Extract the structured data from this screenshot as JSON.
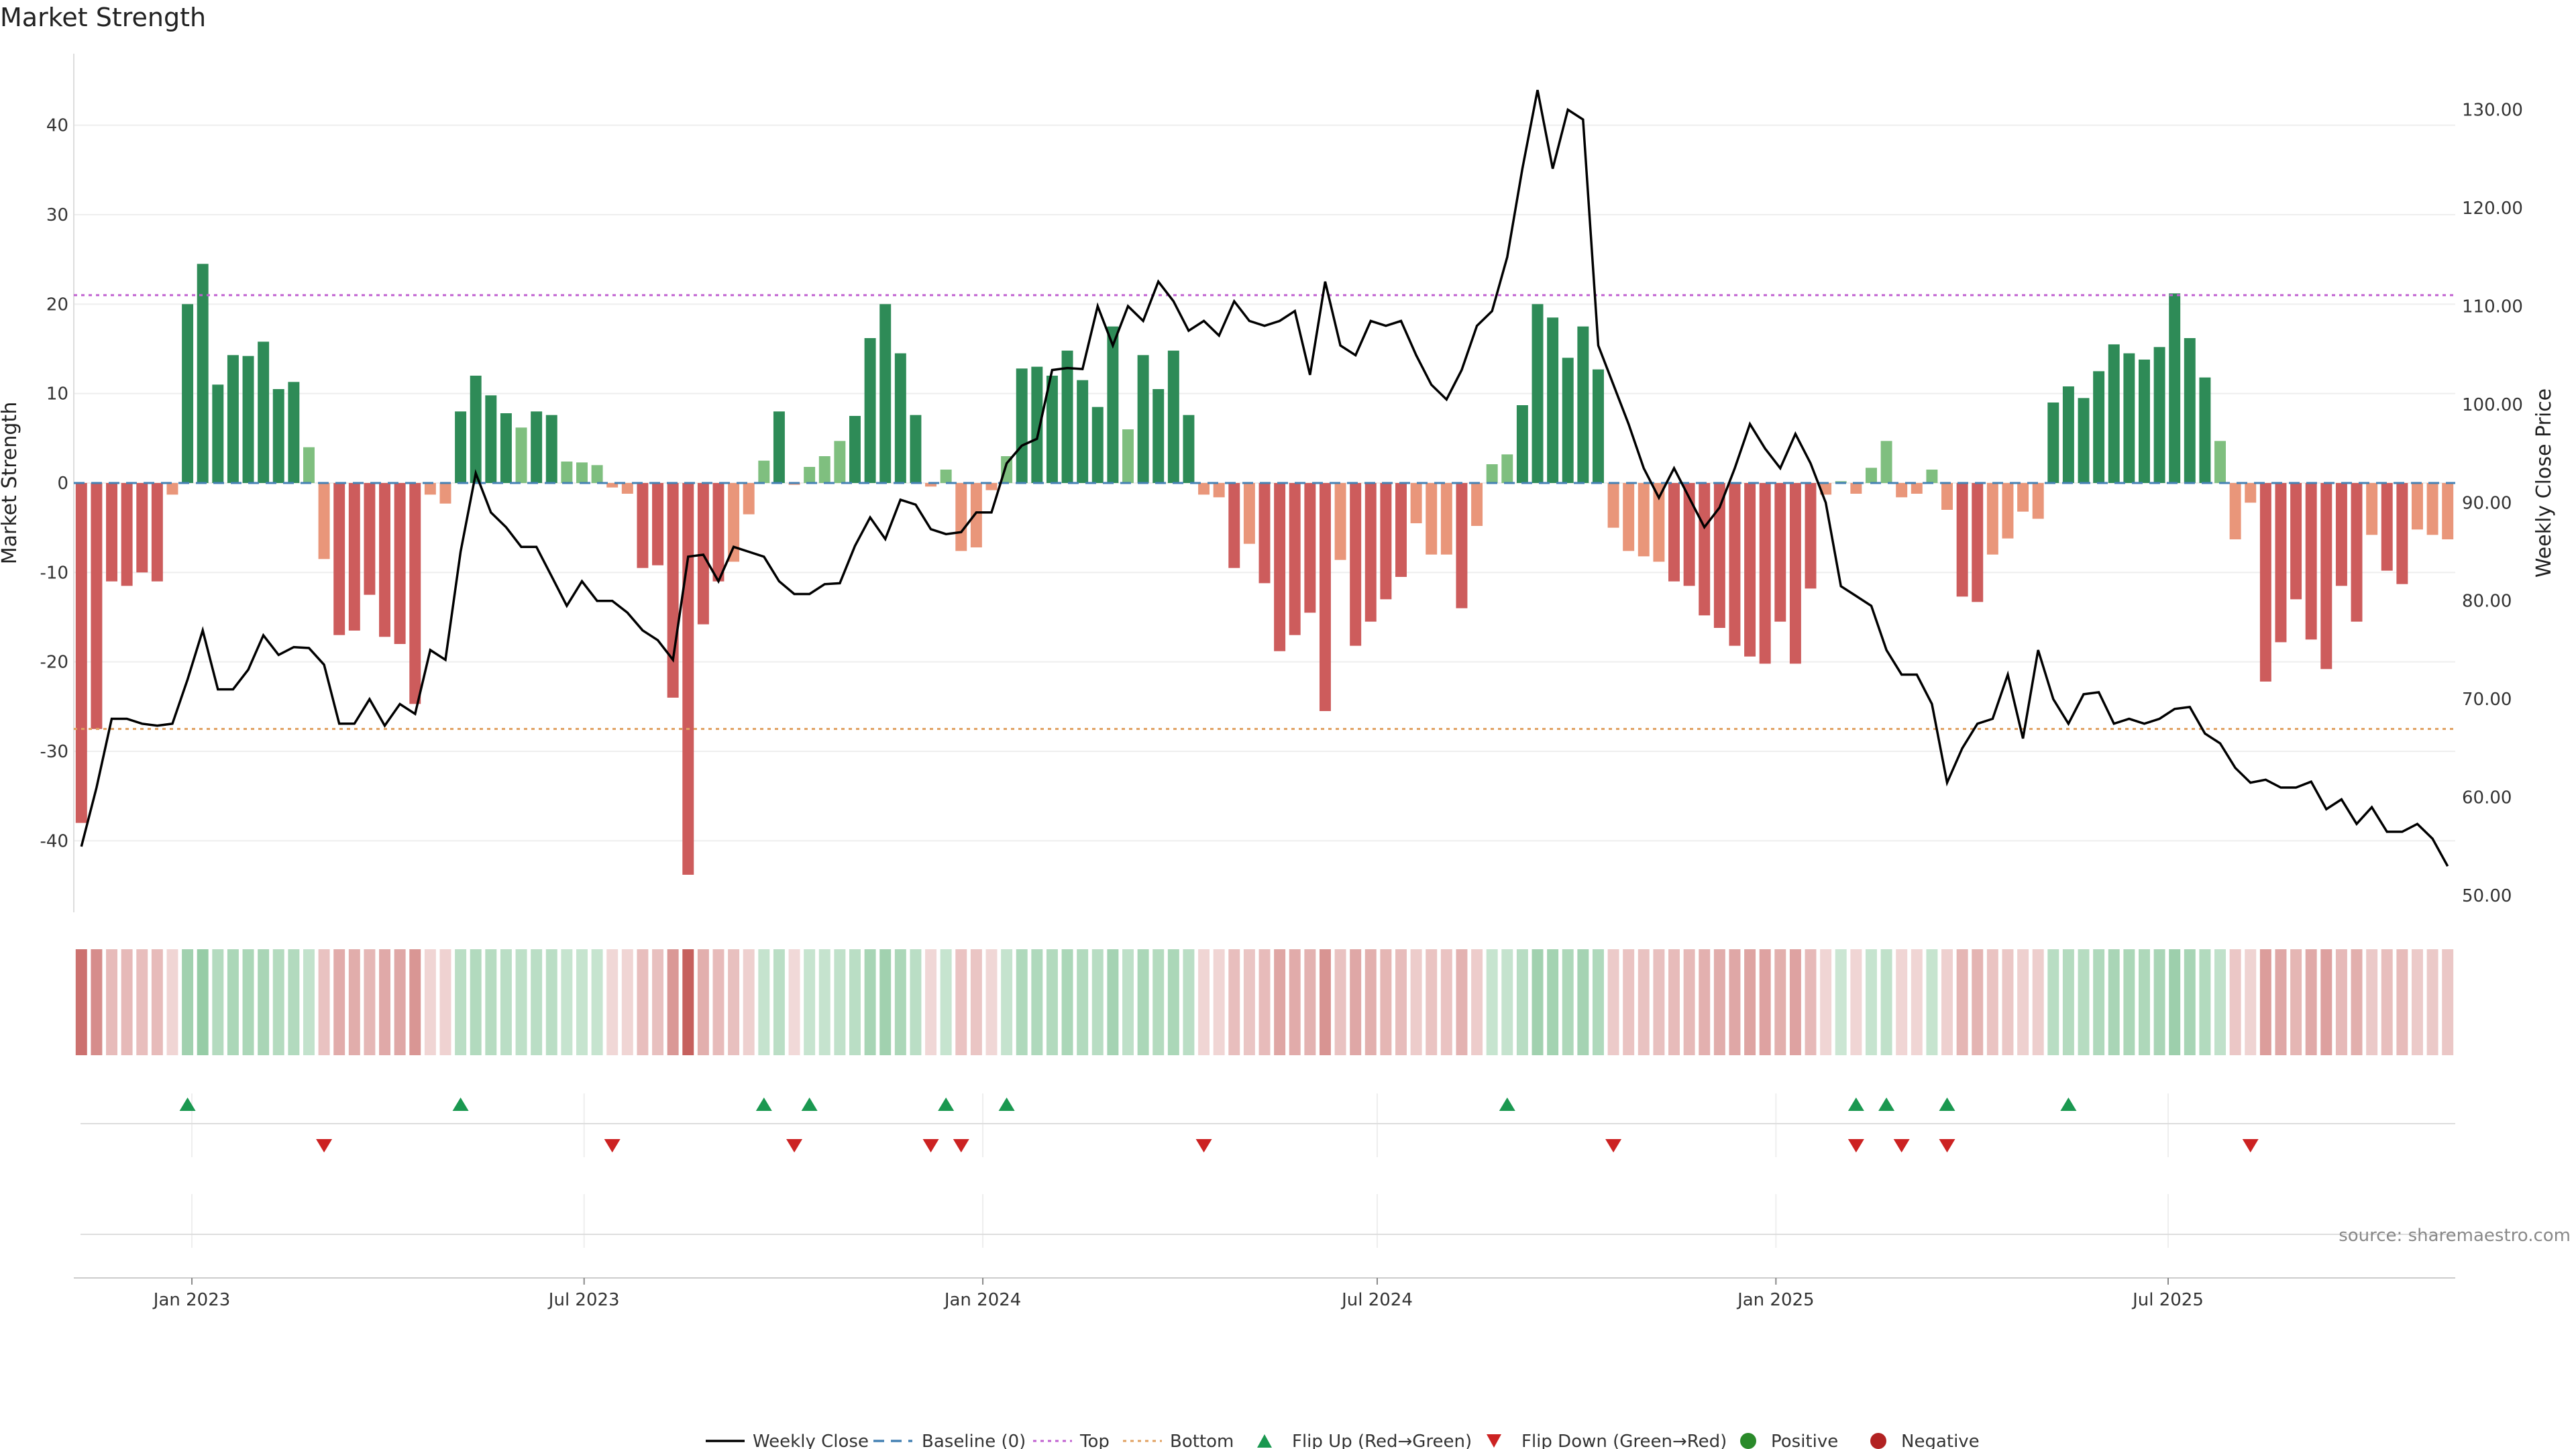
{
  "title": "Market Strength",
  "source": "source: sharemaestro.com",
  "legend": {
    "weekly_close": "Weekly Close",
    "baseline": "Baseline (0)",
    "top": "Top",
    "bottom": "Bottom",
    "flip_up": "Flip Up (Red→Green)",
    "flip_down": "Flip Down (Green→Red)",
    "positive": "Positive",
    "negative": "Negative"
  },
  "colors": {
    "strong_green": "#2e8b57",
    "light_green": "#7fbf7f",
    "strong_red": "#cd5c5c",
    "light_red": "#e9967a",
    "top_line": "#c060d0",
    "bottom_line": "#e0a060",
    "baseline": "#4682b4",
    "flip_up": "#1a9850",
    "flip_down": "#cc2222"
  },
  "chart_data": {
    "type": "bar",
    "x_start": "2022-11-11",
    "x_step_days": 7,
    "x_tick_labels": [
      "Jan 2023",
      "Jul 2023",
      "Jan 2024",
      "Jul 2024",
      "Jan 2025",
      "Jul 2025"
    ],
    "x_tick_dates": [
      "2023-01-01",
      "2023-07-01",
      "2024-01-01",
      "2024-07-01",
      "2025-01-01",
      "2025-07-01"
    ],
    "left_axis": {
      "label": "Market Strength",
      "ylim": [
        -48,
        48
      ],
      "ticks": [
        -40,
        -30,
        -20,
        -10,
        0,
        10,
        20,
        30,
        40
      ]
    },
    "right_axis": {
      "label": "Weekly Close Price",
      "ylim": [
        48.3,
        135.7
      ],
      "ticks": [
        "50.00",
        "60.00",
        "70.00",
        "80.00",
        "90.00",
        "100.00",
        "110.00",
        "120.00",
        "130.00"
      ]
    },
    "top_level": 21,
    "bottom_level": -27.5,
    "baseline": 0,
    "strength": [
      -38,
      -27.5,
      -11,
      -11.5,
      -10,
      -11,
      -1.3,
      20,
      24.5,
      11,
      14.3,
      14.2,
      15.8,
      10.5,
      11.3,
      4,
      -8.5,
      -17,
      -16.5,
      -12.5,
      -17.2,
      -18,
      -24.7,
      -1.3,
      -2.3,
      8,
      12,
      9.8,
      7.8,
      6.2,
      8,
      7.6,
      2.4,
      2.3,
      2,
      -0.5,
      -1.2,
      -9.5,
      -9.2,
      -24,
      -43.8,
      -15.8,
      -11,
      -8.8,
      -3.5,
      2.5,
      8,
      -0.2,
      1.8,
      3,
      4.7,
      7.5,
      16.2,
      20,
      14.5,
      7.6,
      -0.4,
      1.5,
      -7.6,
      -7.2,
      -0.8,
      3,
      12.8,
      13,
      12,
      14.8,
      11.5,
      8.5,
      17.5,
      6,
      14.3,
      10.5,
      14.8,
      7.6,
      -1.3,
      -1.6,
      -9.5,
      -6.8,
      -11.2,
      -18.8,
      -17,
      -14.5,
      -25.5,
      -8.6,
      -18.2,
      -15.5,
      -13,
      -10.5,
      -4.5,
      -8,
      -8,
      -14,
      -4.8,
      2.1,
      3.2,
      8.7,
      20,
      18.5,
      14,
      17.5,
      12.7,
      -5,
      -7.6,
      -8.2,
      -8.8,
      -11,
      -11.5,
      -14.8,
      -16.2,
      -18.2,
      -19.4,
      -20.2,
      -15.5,
      -20.2,
      -11.8,
      -1.3,
      0.2,
      -1.2,
      1.7,
      4.7,
      -1.6,
      -1.2,
      1.5,
      -3,
      -12.7,
      -13.3,
      -8,
      -6.2,
      -3.2,
      -4,
      9,
      10.8,
      9.5,
      12.5,
      15.5,
      14.5,
      13.8,
      15.2,
      21.2,
      16.2,
      11.8,
      4.7,
      -6.3,
      -2.2,
      -22.2,
      -17.8,
      -13,
      -17.5,
      -20.8,
      -11.5,
      -15.5,
      -5.8,
      -9.8,
      -11.3,
      -5.2,
      -5.8,
      -6.3
    ],
    "weekly_close": [
      55,
      61,
      68,
      68,
      67.5,
      67.3,
      67.5,
      72,
      77,
      71,
      71,
      73,
      76.5,
      74.5,
      75.3,
      75.2,
      73.5,
      67.5,
      67.5,
      70,
      67.3,
      69.5,
      68.5,
      75,
      74,
      85,
      93,
      89,
      87.5,
      85.5,
      85.5,
      82.5,
      79.5,
      82,
      80,
      80,
      78.8,
      77,
      76,
      74,
      84.5,
      84.7,
      82,
      85.5,
      85,
      84.5,
      82,
      80.7,
      80.7,
      81.7,
      81.8,
      85.6,
      88.5,
      86.3,
      90.3,
      89.8,
      87.3,
      86.8,
      87,
      89,
      89,
      94,
      95.8,
      96.5,
      103.5,
      103.7,
      103.6,
      110,
      106,
      110,
      108.5,
      112.5,
      110.5,
      107.5,
      108.5,
      107,
      110.5,
      108.5,
      108,
      108.5,
      109.5,
      103,
      112.5,
      106,
      105,
      108.5,
      108,
      108.5,
      105,
      102,
      100.5,
      103.5,
      108,
      109.5,
      115,
      124,
      132,
      124,
      130,
      129,
      106,
      102,
      98,
      93.5,
      90.5,
      93.5,
      90.5,
      87.5,
      89.5,
      93.5,
      98,
      95.5,
      93.5,
      97,
      94,
      90,
      81.5,
      80.5,
      79.5,
      75,
      72.5,
      72.5,
      69.5,
      61.5,
      65,
      67.5,
      68,
      72.5,
      66,
      75,
      70,
      67.5,
      70.5,
      70.7,
      67.5,
      68,
      67.5,
      68,
      69,
      69.2,
      66.5,
      65.5,
      63,
      61.5,
      61.8,
      61,
      61,
      61.6,
      58.8,
      59.8,
      57.3,
      59,
      56.5,
      56.5,
      57.3,
      55.8,
      53
    ],
    "flip_up_weeks": [
      7,
      25,
      45,
      48,
      57,
      61,
      94,
      117,
      119,
      123,
      131
    ],
    "flip_down_weeks": [
      16,
      35,
      47,
      56,
      58,
      74,
      101,
      117,
      120,
      123,
      143
    ]
  }
}
